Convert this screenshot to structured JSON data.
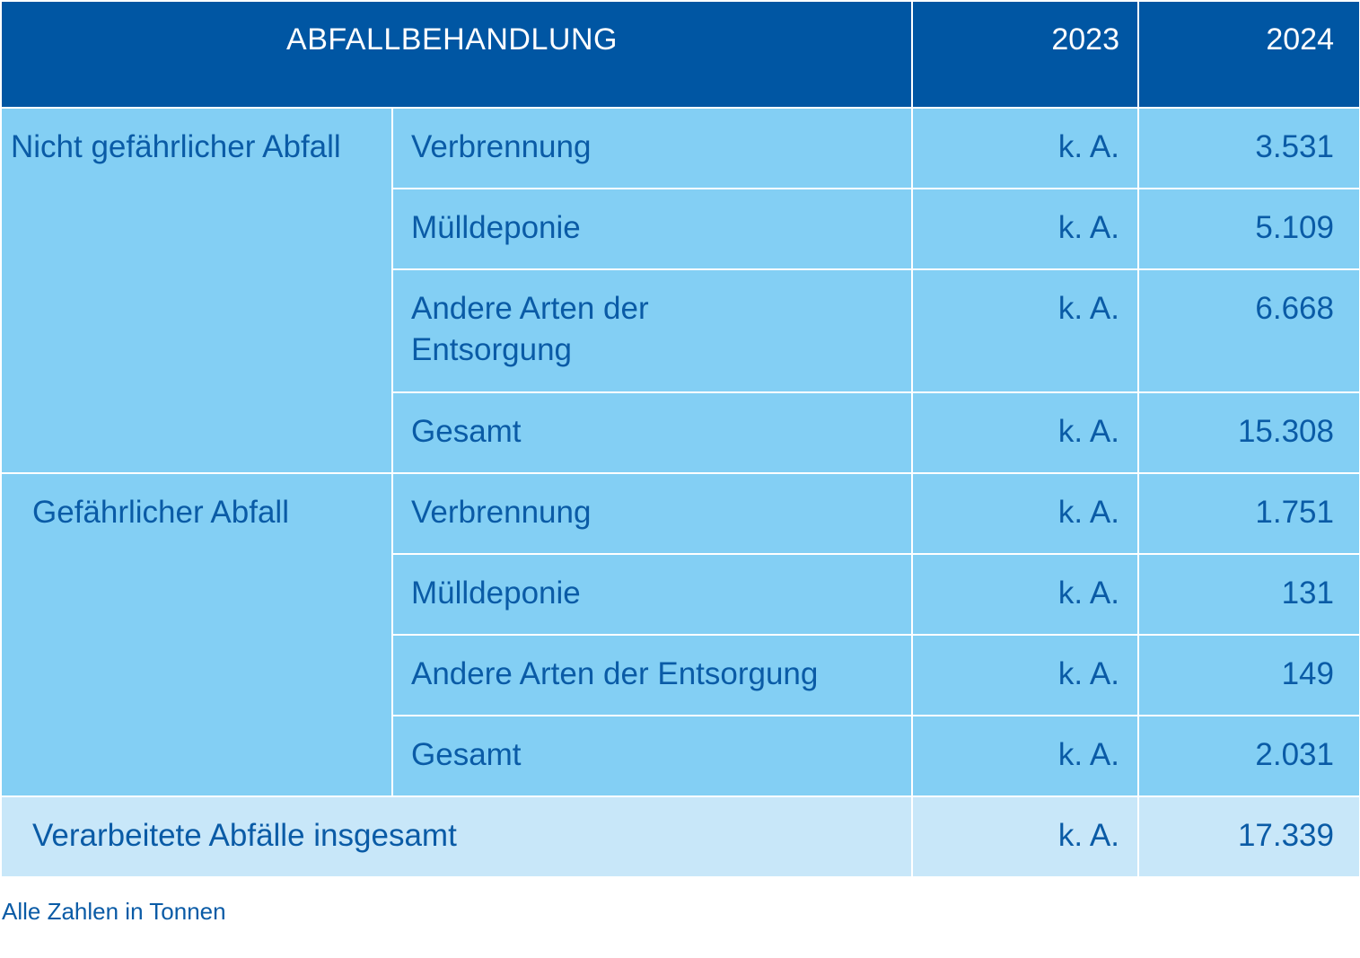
{
  "header": {
    "title": "ABFALLBEHANDLUNG",
    "year_1": "2023",
    "year_2": "2024"
  },
  "groups": [
    {
      "label": "Nicht gefährlicher Abfall",
      "rows": [
        {
          "category": "Verbrennung",
          "v2023": "k. A.",
          "v2024": "3.531"
        },
        {
          "category": "Mülldeponie",
          "v2023": "k. A.",
          "v2024": "5.109"
        },
        {
          "category": "Andere Arten der Entsorgung",
          "v2023": "k. A.",
          "v2024": "6.668"
        },
        {
          "category": "Gesamt",
          "v2023": "k. A.",
          "v2024": "15.308"
        }
      ]
    },
    {
      "label": "Gefährlicher Abfall",
      "rows": [
        {
          "category": "Verbrennung",
          "v2023": "k. A.",
          "v2024": "1.751"
        },
        {
          "category": "Mülldeponie",
          "v2023": "k. A.",
          "v2024": "131"
        },
        {
          "category": "Andere Arten der Entsorgung",
          "v2023": "k. A.",
          "v2024": "149"
        },
        {
          "category": "Gesamt",
          "v2023": "k. A.",
          "v2024": "2.031"
        }
      ]
    }
  ],
  "total": {
    "label": "Verarbeitete Abfälle insgesamt",
    "v2023": "k. A.",
    "v2024": "17.339"
  },
  "footnote": "Alle Zahlen in Tonnen",
  "colors": {
    "header_bg": "#0056a3",
    "row_bg": "#83cff4",
    "total_bg": "#c8e7f9",
    "text": "#0a5ba6"
  }
}
